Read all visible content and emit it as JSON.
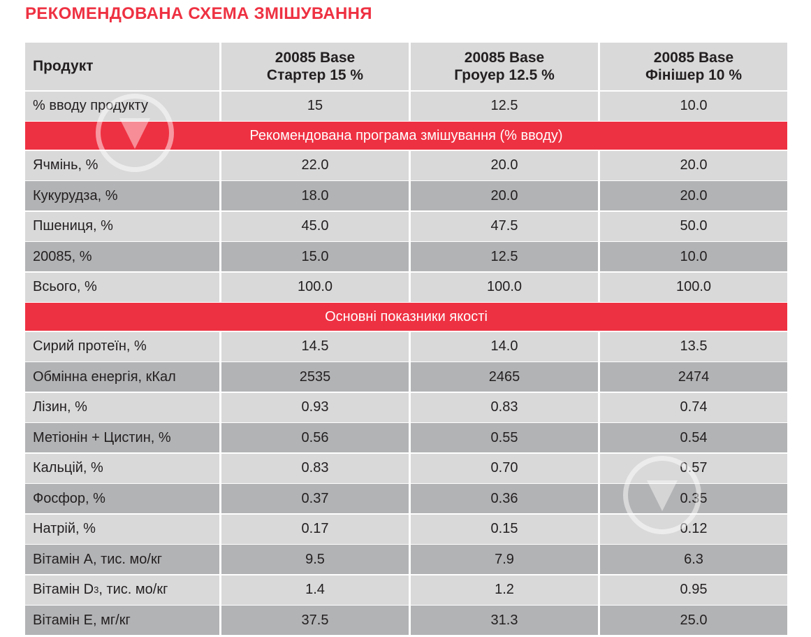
{
  "title": "РЕКОМЕНДОВАНА СХЕМА ЗМІШУВАННЯ",
  "header": {
    "label": "Продукт",
    "columns": [
      {
        "line1": "20085 Base",
        "line2": "Стартер 15 %"
      },
      {
        "line1": "20085 Base",
        "line2": "Гроуер 12.5 %"
      },
      {
        "line1": "20085 Base",
        "line2": "Фінішер 10 %"
      }
    ]
  },
  "input_row": {
    "label": "% вводу продукту",
    "values": [
      "15",
      "12.5",
      "10.0"
    ]
  },
  "section1": {
    "title": "Рекомендована програма змішування (% вводу)",
    "rows": [
      {
        "label": "Ячмінь, %",
        "values": [
          "22.0",
          "20.0",
          "20.0"
        ]
      },
      {
        "label": "Кукурудза, %",
        "values": [
          "18.0",
          "20.0",
          "20.0"
        ]
      },
      {
        "label": "Пшениця, %",
        "values": [
          "45.0",
          "47.5",
          "50.0"
        ]
      },
      {
        "label": "20085, %",
        "values": [
          "15.0",
          "12.5",
          "10.0"
        ]
      },
      {
        "label": "Всього, %",
        "values": [
          "100.0",
          "100.0",
          "100.0"
        ]
      }
    ]
  },
  "section2": {
    "title": "Основні показники якості",
    "rows": [
      {
        "label": "Сирий протеїн, %",
        "values": [
          "14.5",
          "14.0",
          "13.5"
        ]
      },
      {
        "label": "Обмінна енергія, кКал",
        "values": [
          "2535",
          "2465",
          "2474"
        ]
      },
      {
        "label": "Лізин, %",
        "values": [
          "0.93",
          "0.83",
          "0.74"
        ]
      },
      {
        "label": "Метіонін + Цистин, %",
        "values": [
          "0.56",
          "0.55",
          "0.54"
        ]
      },
      {
        "label": "Кальцій, %",
        "values": [
          "0.83",
          "0.70",
          "0.57"
        ]
      },
      {
        "label": "Фосфор, %",
        "values": [
          "0.37",
          "0.36",
          "0.35"
        ]
      },
      {
        "label": "Натрій, %",
        "values": [
          "0.17",
          "0.15",
          "0.12"
        ]
      },
      {
        "label": "Вітамін А, тис. мо/кг",
        "values": [
          "9.5",
          "7.9",
          "6.3"
        ]
      },
      {
        "label_pre": "Вітамін D",
        "label_sub": "3",
        "label_post": ", тис. мо/кг",
        "values": [
          "1.4",
          "1.2",
          "0.95"
        ]
      },
      {
        "label": "Вітамін Е, мг/кг",
        "values": [
          "37.5",
          "31.3",
          "25.0"
        ]
      }
    ]
  }
}
